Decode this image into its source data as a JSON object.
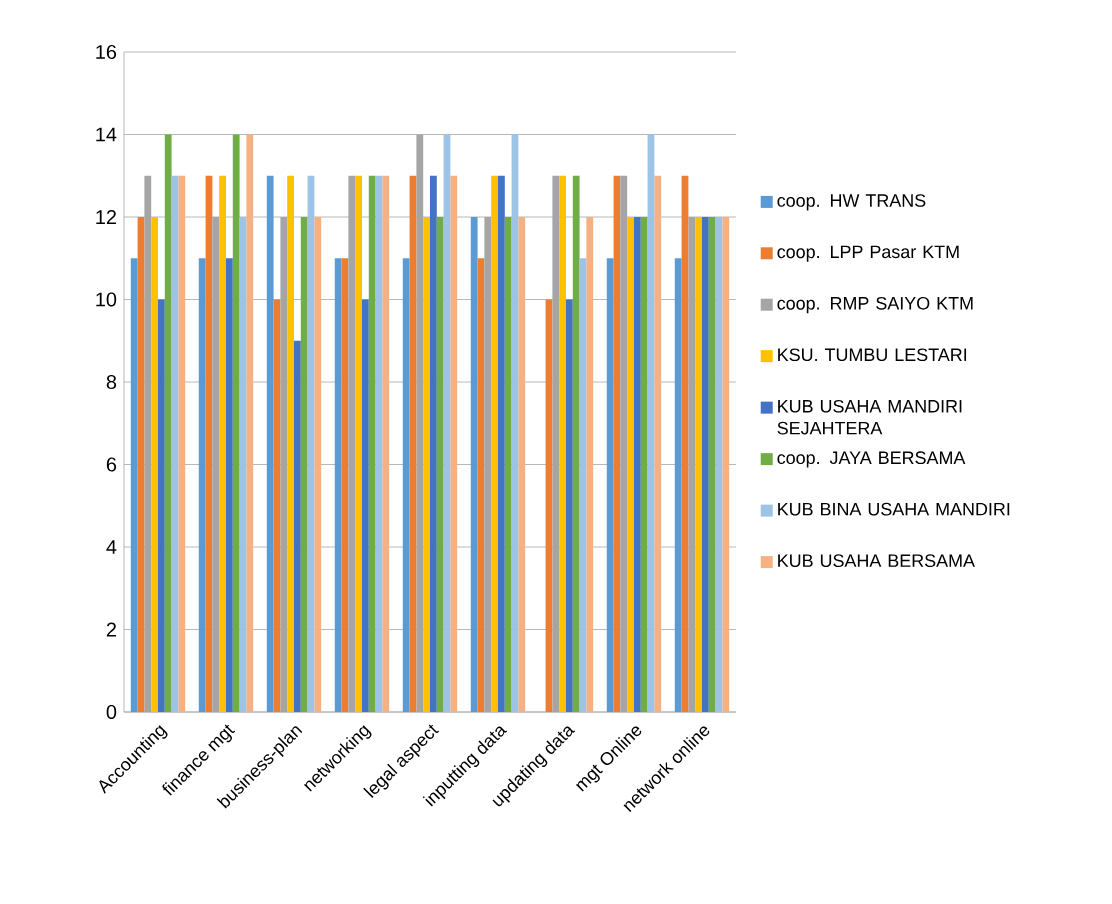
{
  "chart_data": {
    "type": "bar",
    "categories": [
      "Accounting",
      "finance mgt",
      "business-plan",
      "networking",
      "legal aspect",
      "inputting data",
      "updating data",
      "mgt Online",
      "network online"
    ],
    "series": [
      {
        "name": "coop. HW TRANS",
        "color": "#5b9bd5",
        "values": [
          11,
          11,
          13,
          11,
          11,
          12,
          null,
          11,
          11
        ]
      },
      {
        "name": "coop. LPP Pasar KTM",
        "color": "#ed7d31",
        "values": [
          12,
          13,
          10,
          11,
          13,
          11,
          10,
          13,
          13
        ]
      },
      {
        "name": "coop. RMP SAIYO KTM",
        "color": "#a5a5a5",
        "values": [
          13,
          12,
          12,
          13,
          14,
          12,
          13,
          13,
          12
        ]
      },
      {
        "name": "KSU. TUMBU LESTARI",
        "color": "#ffc000",
        "values": [
          12,
          13,
          13,
          13,
          12,
          13,
          13,
          12,
          12
        ]
      },
      {
        "name": "KUB USAHA MANDIRI SEJAHTERA",
        "color": "#4472c4",
        "values": [
          10,
          11,
          9,
          10,
          13,
          13,
          10,
          12,
          12
        ]
      },
      {
        "name": "coop. JAYA BERSAMA",
        "color": "#70ad47",
        "values": [
          14,
          14,
          12,
          13,
          12,
          12,
          13,
          12,
          12
        ]
      },
      {
        "name": "KUB BINA USAHA MANDIRI",
        "color": "#9dc3e6",
        "values": [
          13,
          12,
          13,
          13,
          14,
          14,
          11,
          14,
          12
        ]
      },
      {
        "name": "KUB USAHA BERSAMA",
        "color": "#f4b183",
        "values": [
          13,
          14,
          12,
          13,
          13,
          12,
          12,
          13,
          12
        ]
      }
    ],
    "ylim": [
      0,
      16
    ],
    "yticks": [
      0,
      2,
      4,
      6,
      8,
      10,
      12,
      14,
      16
    ],
    "grid": "y",
    "legend": "right"
  }
}
